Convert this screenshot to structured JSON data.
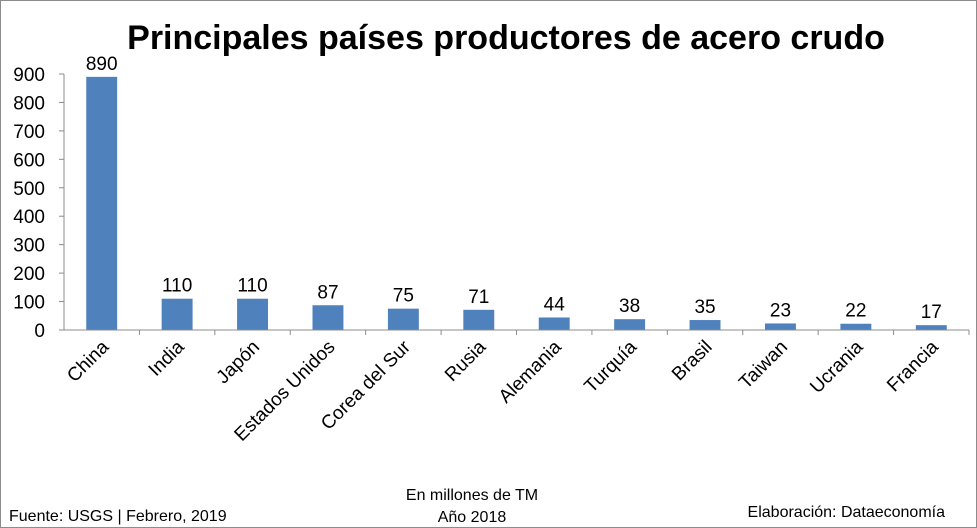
{
  "chart_data": {
    "type": "bar",
    "title": "Principales países productores de acero crudo",
    "categories": [
      "China",
      "India",
      "Japón",
      "Estados Unidos",
      "Corea del Sur",
      "Rusia",
      "Alemania",
      "Turquía",
      "Brasil",
      "Taiwan",
      "Ucrania",
      "Francia"
    ],
    "values": [
      890,
      110,
      110,
      87,
      75,
      71,
      44,
      38,
      35,
      23,
      22,
      17
    ],
    "ylim": [
      0,
      900
    ],
    "yticks": [
      0,
      100,
      200,
      300,
      400,
      500,
      600,
      700,
      800,
      900
    ],
    "grid": false,
    "legend": "none",
    "bar_color": "#4f81bd"
  },
  "footer": {
    "source": "Fuente: USGS | Febrero, 2019",
    "units_line1": "En millones de TM",
    "units_line2": "Año 2018",
    "credit": "Elaboración: Dataeconomía"
  }
}
